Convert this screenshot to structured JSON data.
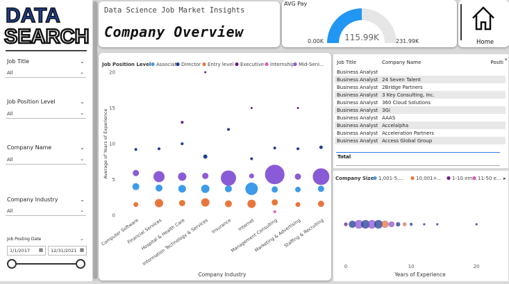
{
  "logo": {
    "line1": "DATA",
    "line2": "SEARCH"
  },
  "filters": [
    {
      "label": "Job Title",
      "value": "All"
    },
    {
      "label": "Job Position Level",
      "value": "All"
    },
    {
      "label": "Company Name",
      "value": "All"
    },
    {
      "label": "Company Industry",
      "value": "All"
    }
  ],
  "date_filter": {
    "label": "Job Posting Date",
    "start": "1/1/2017",
    "end": "12/31/2021"
  },
  "header": {
    "subtitle": "Data Science Job Market Insights",
    "title": "Company Overview"
  },
  "gauge": {
    "title": "AVG Pay",
    "value_label": "115.99K",
    "min_label": "0.00K",
    "max_label": "231.99K",
    "min": 0,
    "max": 231.99,
    "value": 115.99
  },
  "home": {
    "label": "Home"
  },
  "colors": {
    "associate": "#3d9be9",
    "director": "#1c3f95",
    "entry": "#e8773c",
    "executive": "#6b1f8f",
    "internship": "#e35bb3",
    "mid": "#8a5bd6",
    "gauge_fill": "#2196f3",
    "gauge_bg": "#e6e6e6"
  },
  "chart_data": [
    {
      "type": "scatter",
      "legend_title": "Job Position Level",
      "legend_items": [
        "Associate",
        "Director",
        "Entry level",
        "Executive",
        "Internship",
        "Mid-Seni..."
      ],
      "xlabel": "Company Industry",
      "ylabel": "Average of Years of Experience",
      "ylim": [
        0,
        20
      ],
      "yticks": [
        "0",
        "5",
        "10",
        "15",
        "20"
      ],
      "categories": [
        "Computer Software",
        "Financial Services",
        "Hospital & Health Care",
        "Information Technology & Services",
        "Insurance",
        "Internet",
        "Management Consulting",
        "Marketing & Advertising",
        "Staffing & Recruiting"
      ],
      "series": [
        {
          "name": "Associate",
          "values": [
            4,
            3.8,
            3.7,
            3.7,
            3.7,
            3.7,
            3.6,
            3.6,
            3.7
          ]
        },
        {
          "name": "Director",
          "values": [
            9.2,
            9.3,
            10,
            8.2,
            12,
            7.9,
            9.4,
            9.3,
            9.5
          ]
        },
        {
          "name": "Entry level",
          "values": [
            1.5,
            1.7,
            1.7,
            1.8,
            1.6,
            1.6,
            1.8,
            1.5,
            1.6
          ]
        },
        {
          "name": "Executive",
          "values": [
            null,
            null,
            13,
            20,
            null,
            15,
            null,
            15,
            null
          ]
        },
        {
          "name": "Internship",
          "values": [
            null,
            null,
            null,
            null,
            null,
            null,
            0.5,
            null,
            null
          ]
        },
        {
          "name": "Mid-Senior level",
          "values": [
            5.9,
            5.4,
            5.4,
            5.5,
            5.2,
            5.5,
            5.7,
            5.4,
            5.4
          ]
        }
      ]
    },
    {
      "type": "scatter",
      "legend_title": "Company Size",
      "legend_items": [
        "1,001-5,...",
        "10,001+...",
        "1-10 em...",
        "11-50 e..."
      ],
      "xlabel": "Years of Experience",
      "xlim": [
        0,
        22
      ],
      "xticks": [
        "0",
        "10",
        "20"
      ],
      "x": [
        0,
        1,
        2,
        3,
        4,
        5,
        6,
        7,
        8,
        9,
        10,
        12,
        14,
        20
      ]
    }
  ],
  "table": {
    "columns": [
      "Job Title",
      "Company Name",
      "Positi"
    ],
    "rows": [
      [
        "Business Analyst",
        ""
      ],
      [
        "Business Analyst",
        "24 Seven Talent"
      ],
      [
        "Business Analyst",
        "2Bridge Partners"
      ],
      [
        "Business Analyst",
        "3 Key Consulting, Inc."
      ],
      [
        "Business Analyst",
        "360 Cloud Solutions"
      ],
      [
        "Business Analyst",
        "3Gi"
      ],
      [
        "Business Analyst",
        "AAAS"
      ],
      [
        "Business Analyst",
        "Accelalpha"
      ],
      [
        "Business Analyst",
        "Acceleration Partners"
      ],
      [
        "Business Analyst",
        "Access Global Group"
      ]
    ],
    "total_label": "Total"
  }
}
